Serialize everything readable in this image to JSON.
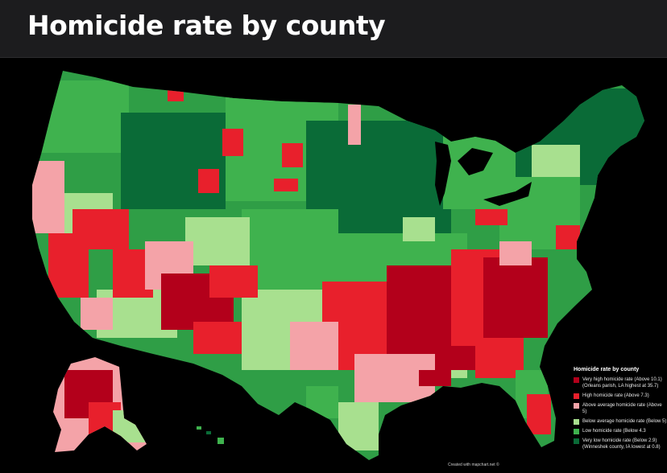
{
  "title": "Homicide rate by county",
  "legend": {
    "title": "Homicide rate by county",
    "items": [
      {
        "label": "Very high homicide rate (Above 10.1) (Orleans parish, LA highest at 35.7)",
        "color": "#b3001b"
      },
      {
        "label": "High homicide rate (Above 7.3)",
        "color": "#e8202c"
      },
      {
        "label": "Above average homicide rate (Above 5)",
        "color": "#f4a3a8"
      },
      {
        "label": "Below average homicide rate (Below 5)",
        "color": "#a8e08f"
      },
      {
        "label": "Low homicide rate (Below 4.3",
        "color": "#3fb24e"
      },
      {
        "label": "Very low homicide rate (Below 2.9) (Winneshek county, IA lowest at 0.8)",
        "color": "#0a6b37"
      }
    ]
  },
  "credit": "Created with mapchart.net ©"
}
